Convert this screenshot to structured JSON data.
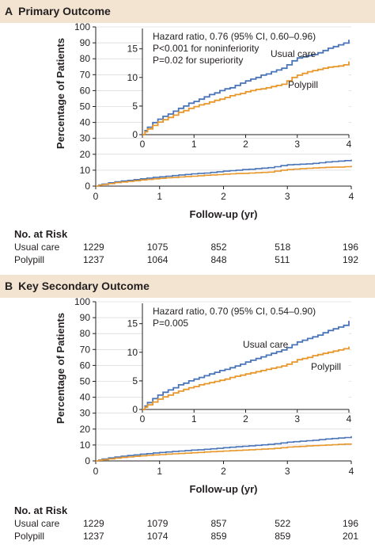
{
  "chart_data": [
    {
      "panel": "A",
      "title": "Primary Outcome",
      "type": "line",
      "xlabel": "Follow-up (yr)",
      "ylabel": "Percentage of Patients",
      "xlim": [
        0,
        4
      ],
      "ylim": [
        0,
        100
      ],
      "xticks": [
        0,
        1,
        2,
        3,
        4
      ],
      "yticks": [
        0,
        10,
        20,
        30,
        40,
        50,
        60,
        70,
        80,
        90,
        100
      ],
      "grid": false,
      "inset": {
        "ylim": [
          0,
          18
        ],
        "yticks": [
          0,
          5,
          10,
          15
        ],
        "xticks": [
          0,
          1,
          2,
          3,
          4
        ],
        "annotation": [
          "Hazard ratio, 0.76 (95% CI, 0.60–0.96)",
          "P<0.001 for noninferiority",
          "P=0.02 for superiority"
        ]
      },
      "series": [
        {
          "name": "Usual care",
          "color": "#4a74b8",
          "x": [
            0,
            0.05,
            0.1,
            0.2,
            0.3,
            0.4,
            0.5,
            0.6,
            0.7,
            0.8,
            0.9,
            1.0,
            1.1,
            1.2,
            1.3,
            1.4,
            1.5,
            1.6,
            1.7,
            1.8,
            1.9,
            2.0,
            2.1,
            2.2,
            2.3,
            2.4,
            2.5,
            2.6,
            2.7,
            2.8,
            2.9,
            3.0,
            3.1,
            3.2,
            3.3,
            3.4,
            3.5,
            3.6,
            3.7,
            3.8,
            3.9,
            4.0
          ],
          "y": [
            0,
            0.7,
            1.3,
            2.1,
            2.7,
            3.2,
            3.6,
            4.1,
            4.6,
            5.0,
            5.5,
            5.8,
            6.2,
            6.6,
            7.0,
            7.3,
            7.7,
            8.0,
            8.2,
            8.6,
            9.0,
            9.4,
            9.7,
            10.0,
            10.4,
            10.6,
            11.0,
            11.3,
            11.6,
            12.2,
            12.9,
            13.4,
            13.6,
            13.8,
            14.0,
            14.3,
            14.7,
            15.1,
            15.4,
            15.7,
            16.0,
            16.6
          ]
        },
        {
          "name": "Polypill",
          "color": "#e8972b",
          "x": [
            0,
            0.05,
            0.1,
            0.2,
            0.3,
            0.4,
            0.5,
            0.6,
            0.7,
            0.8,
            0.9,
            1.0,
            1.1,
            1.2,
            1.3,
            1.4,
            1.5,
            1.6,
            1.7,
            1.8,
            1.9,
            2.0,
            2.1,
            2.2,
            2.3,
            2.4,
            2.5,
            2.6,
            2.7,
            2.8,
            2.9,
            3.0,
            3.1,
            3.2,
            3.3,
            3.4,
            3.5,
            3.6,
            3.7,
            3.8,
            3.9,
            4.0
          ],
          "y": [
            0,
            0.5,
            1.0,
            1.6,
            2.2,
            2.6,
            3.0,
            3.4,
            3.9,
            4.2,
            4.6,
            4.9,
            5.2,
            5.4,
            5.7,
            6.0,
            6.2,
            6.5,
            6.8,
            7.0,
            7.2,
            7.5,
            7.7,
            7.9,
            8.0,
            8.2,
            8.4,
            8.6,
            8.8,
            9.4,
            10.0,
            10.4,
            10.7,
            11.0,
            11.2,
            11.4,
            11.6,
            11.8,
            11.9,
            12.0,
            12.2,
            12.8
          ]
        }
      ],
      "at_risk": {
        "heading": "No. at Risk",
        "rows": [
          {
            "label": "Usual care",
            "values": [
              "1229",
              "1075",
              "852",
              "518",
              "196"
            ]
          },
          {
            "label": "Polypill",
            "values": [
              "1237",
              "1064",
              "848",
              "511",
              "192"
            ]
          }
        ]
      }
    },
    {
      "panel": "B",
      "title": "Key Secondary Outcome",
      "type": "line",
      "xlabel": "Follow-up (yr)",
      "ylabel": "Percentage of Patients",
      "xlim": [
        0,
        4
      ],
      "ylim": [
        0,
        100
      ],
      "xticks": [
        0,
        1,
        2,
        3,
        4
      ],
      "yticks": [
        0,
        10,
        20,
        30,
        40,
        50,
        60,
        70,
        80,
        90,
        100
      ],
      "grid": false,
      "inset": {
        "ylim": [
          0,
          18
        ],
        "yticks": [
          0,
          5,
          10,
          15
        ],
        "xticks": [
          0,
          1,
          2,
          3,
          4
        ],
        "annotation": [
          "Hazard ratio, 0.70 (95% CI, 0.54–0.90)",
          "P=0.005"
        ]
      },
      "series": [
        {
          "name": "Usual care",
          "color": "#4a74b8",
          "x": [
            0,
            0.05,
            0.1,
            0.2,
            0.3,
            0.4,
            0.5,
            0.6,
            0.7,
            0.8,
            0.9,
            1.0,
            1.1,
            1.2,
            1.3,
            1.4,
            1.5,
            1.6,
            1.7,
            1.8,
            1.9,
            2.0,
            2.1,
            2.2,
            2.3,
            2.4,
            2.5,
            2.6,
            2.7,
            2.8,
            2.9,
            3.0,
            3.1,
            3.2,
            3.3,
            3.4,
            3.5,
            3.6,
            3.7,
            3.8,
            3.9,
            4.0
          ],
          "y": [
            0,
            0.6,
            1.2,
            1.9,
            2.5,
            3.0,
            3.4,
            3.8,
            4.3,
            4.6,
            5.0,
            5.3,
            5.6,
            5.9,
            6.2,
            6.5,
            6.8,
            7.0,
            7.3,
            7.6,
            7.9,
            8.3,
            8.6,
            8.9,
            9.2,
            9.5,
            9.8,
            10.1,
            10.4,
            10.8,
            11.3,
            11.8,
            12.1,
            12.4,
            12.7,
            13.0,
            13.4,
            13.8,
            14.1,
            14.4,
            14.7,
            15.5
          ]
        },
        {
          "name": "Polypill",
          "color": "#e8972b",
          "x": [
            0,
            0.05,
            0.1,
            0.2,
            0.3,
            0.4,
            0.5,
            0.6,
            0.7,
            0.8,
            0.9,
            1.0,
            1.1,
            1.2,
            1.3,
            1.4,
            1.5,
            1.6,
            1.7,
            1.8,
            1.9,
            2.0,
            2.1,
            2.2,
            2.3,
            2.4,
            2.5,
            2.6,
            2.7,
            2.8,
            2.9,
            3.0,
            3.1,
            3.2,
            3.3,
            3.4,
            3.5,
            3.6,
            3.7,
            3.8,
            3.9,
            4.0
          ],
          "y": [
            0,
            0.4,
            0.8,
            1.3,
            1.8,
            2.2,
            2.5,
            2.9,
            3.2,
            3.5,
            3.8,
            4.0,
            4.3,
            4.5,
            4.7,
            4.9,
            5.1,
            5.3,
            5.6,
            5.8,
            6.0,
            6.2,
            6.4,
            6.6,
            6.8,
            7.0,
            7.2,
            7.4,
            7.6,
            7.9,
            8.3,
            8.7,
            8.9,
            9.1,
            9.4,
            9.6,
            9.8,
            10.0,
            10.2,
            10.4,
            10.6,
            11.0
          ]
        }
      ],
      "at_risk": {
        "heading": "No. at Risk",
        "rows": [
          {
            "label": "Usual care",
            "values": [
              "1229",
              "1079",
              "857",
              "522",
              "196"
            ]
          },
          {
            "label": "Polypill",
            "values": [
              "1237",
              "1074",
              "859",
              "859",
              "201"
            ]
          }
        ]
      }
    }
  ]
}
